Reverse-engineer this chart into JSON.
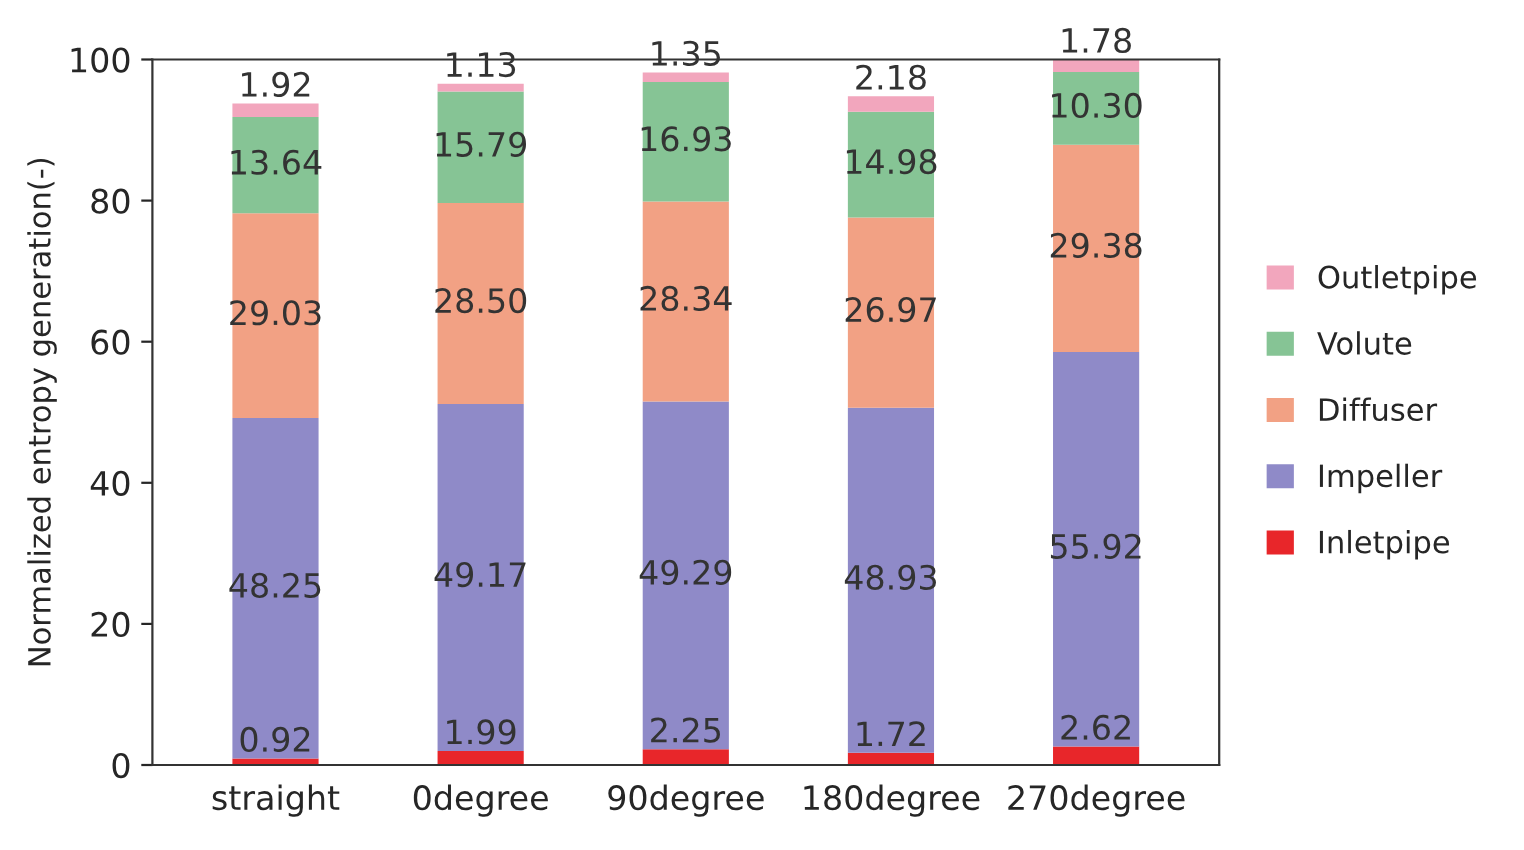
{
  "chart_data": {
    "type": "bar",
    "stacked": true,
    "ylabel": "Normalized entropy generation(-)",
    "categories": [
      "straight",
      "0degree",
      "90degree",
      "180degree",
      "270degree"
    ],
    "series": [
      {
        "name": "Inletpipe",
        "color": "#e8262a",
        "values": [
          0.92,
          1.99,
          2.25,
          1.72,
          2.62
        ],
        "value_labels": [
          "0.92",
          "1.99",
          "2.25",
          "1.72",
          "2.62"
        ]
      },
      {
        "name": "Impeller",
        "color": "#8f8ac8",
        "values": [
          48.25,
          49.17,
          49.29,
          48.93,
          55.92
        ],
        "value_labels": [
          "48.25",
          "49.17",
          "49.29",
          "48.93",
          "55.92"
        ]
      },
      {
        "name": "Diffuser",
        "color": "#f2a184",
        "values": [
          29.03,
          28.5,
          28.34,
          26.97,
          29.38
        ],
        "value_labels": [
          "29.03",
          "28.50",
          "28.34",
          "26.97",
          "29.38"
        ]
      },
      {
        "name": "Volute",
        "color": "#86c495",
        "values": [
          13.64,
          15.79,
          16.93,
          14.98,
          10.3
        ],
        "value_labels": [
          "13.64",
          "15.79",
          "16.93",
          "14.98",
          "10.30"
        ]
      },
      {
        "name": "Outletpipe",
        "color": "#f2a6bd",
        "values": [
          1.92,
          1.13,
          1.35,
          2.18,
          1.78
        ],
        "value_labels": [
          "1.92",
          "1.13",
          "1.35",
          "2.18",
          "1.78"
        ]
      }
    ],
    "ylim": [
      0,
      100
    ],
    "yticks": [
      0,
      20,
      40,
      60,
      80,
      100
    ],
    "legend": "right"
  }
}
